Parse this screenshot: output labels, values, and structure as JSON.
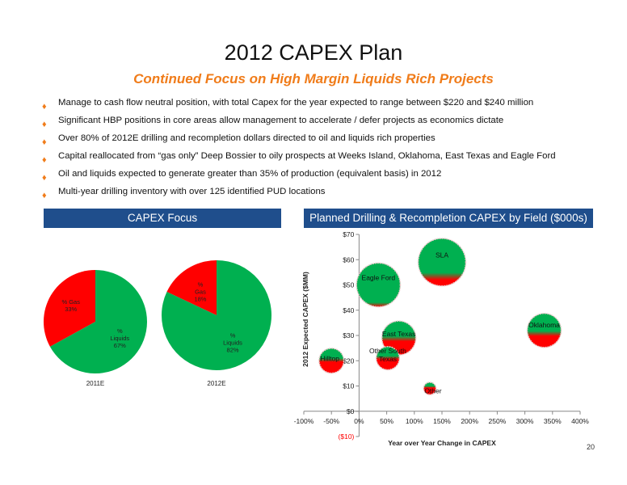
{
  "slide": {
    "title": "2012 CAPEX Plan",
    "subtitle": "Continued Focus on High Margin Liquids Rich Projects",
    "page_number": "20",
    "bullets": [
      "Manage to cash flow neutral position, with total Capex for the year expected to range between $220  and $240 million",
      "Significant HBP positions in core areas allow management to accelerate / defer projects as economics dictate",
      "Over 80% of 2012E drilling and recompletion dollars directed to oil and liquids rich properties",
      "Capital reallocated from “gas only” Deep Bossier to oily prospects at Weeks Island, Oklahoma, East Texas and Eagle Ford",
      "Oil and liquids expected to generate greater than 35% of production (equivalent basis) in 2012",
      "Multi-year drilling inventory with over 125 identified PUD locations"
    ],
    "left_panel_title": "CAPEX Focus",
    "right_panel_title": "Planned Drilling & Recompletion CAPEX by Field ($000s)"
  },
  "colors": {
    "gas": "#ff0000",
    "liquids": "#00b050",
    "orange": "#f07c1a",
    "panel": "#1f4e8c"
  },
  "chart_data": [
    {
      "type": "pie",
      "title": "2011E",
      "slices": [
        {
          "name": "% Gas",
          "value": 33,
          "label": "33%",
          "color": "#ff0000"
        },
        {
          "name": "% Liquids",
          "value": 67,
          "label": "67%",
          "color": "#00b050"
        }
      ]
    },
    {
      "type": "pie",
      "title": "2012E",
      "slices": [
        {
          "name": "% Gas",
          "value": 18,
          "label": "18%",
          "color": "#ff0000"
        },
        {
          "name": "% Liquids",
          "value": 82,
          "label": "82%",
          "color": "#00b050"
        }
      ]
    },
    {
      "type": "bubble",
      "title": "Planned Drilling & Recompletion CAPEX by Field ($000s)",
      "xlabel": "Year over Year Change in CAPEX",
      "ylabel": "2012 Expected CAPEX ($MM)",
      "xlim": [
        -100,
        400
      ],
      "ylim": [
        -10,
        70
      ],
      "xticks": [
        "-100%",
        "-50%",
        "0%",
        "50%",
        "100%",
        "150%",
        "200%",
        "250%",
        "300%",
        "350%",
        "400%"
      ],
      "xtick_values": [
        -100,
        -50,
        0,
        50,
        100,
        150,
        200,
        250,
        300,
        350,
        400
      ],
      "yticks": [
        "($10)",
        "$0",
        "$10",
        "$20",
        "$30",
        "$40",
        "$50",
        "$60",
        "$70"
      ],
      "ytick_values": [
        -10,
        0,
        10,
        20,
        30,
        40,
        50,
        60,
        70
      ],
      "grid": false,
      "points": [
        {
          "name": "SLA",
          "x": 150,
          "y": 59,
          "size": 59,
          "liquids_share": 0.82
        },
        {
          "name": "Eagle Ford",
          "x": 35,
          "y": 50,
          "size": 50,
          "liquids_share": 1.0
        },
        {
          "name": "Oklahoma",
          "x": 335,
          "y": 32,
          "size": 30,
          "liquids_share": 0.62
        },
        {
          "name": "East Texas",
          "x": 72,
          "y": 29,
          "size": 30,
          "liquids_share": 0.55
        },
        {
          "name": "Other South Texas",
          "x": 52,
          "y": 21,
          "size": 14,
          "liquids_share": 0.5
        },
        {
          "name": "Hilltop",
          "x": -50,
          "y": 20,
          "size": 16,
          "liquids_share": 0.5
        },
        {
          "name": "Other",
          "x": 128,
          "y": 9,
          "size": 4,
          "liquids_share": 0.4
        }
      ]
    }
  ]
}
